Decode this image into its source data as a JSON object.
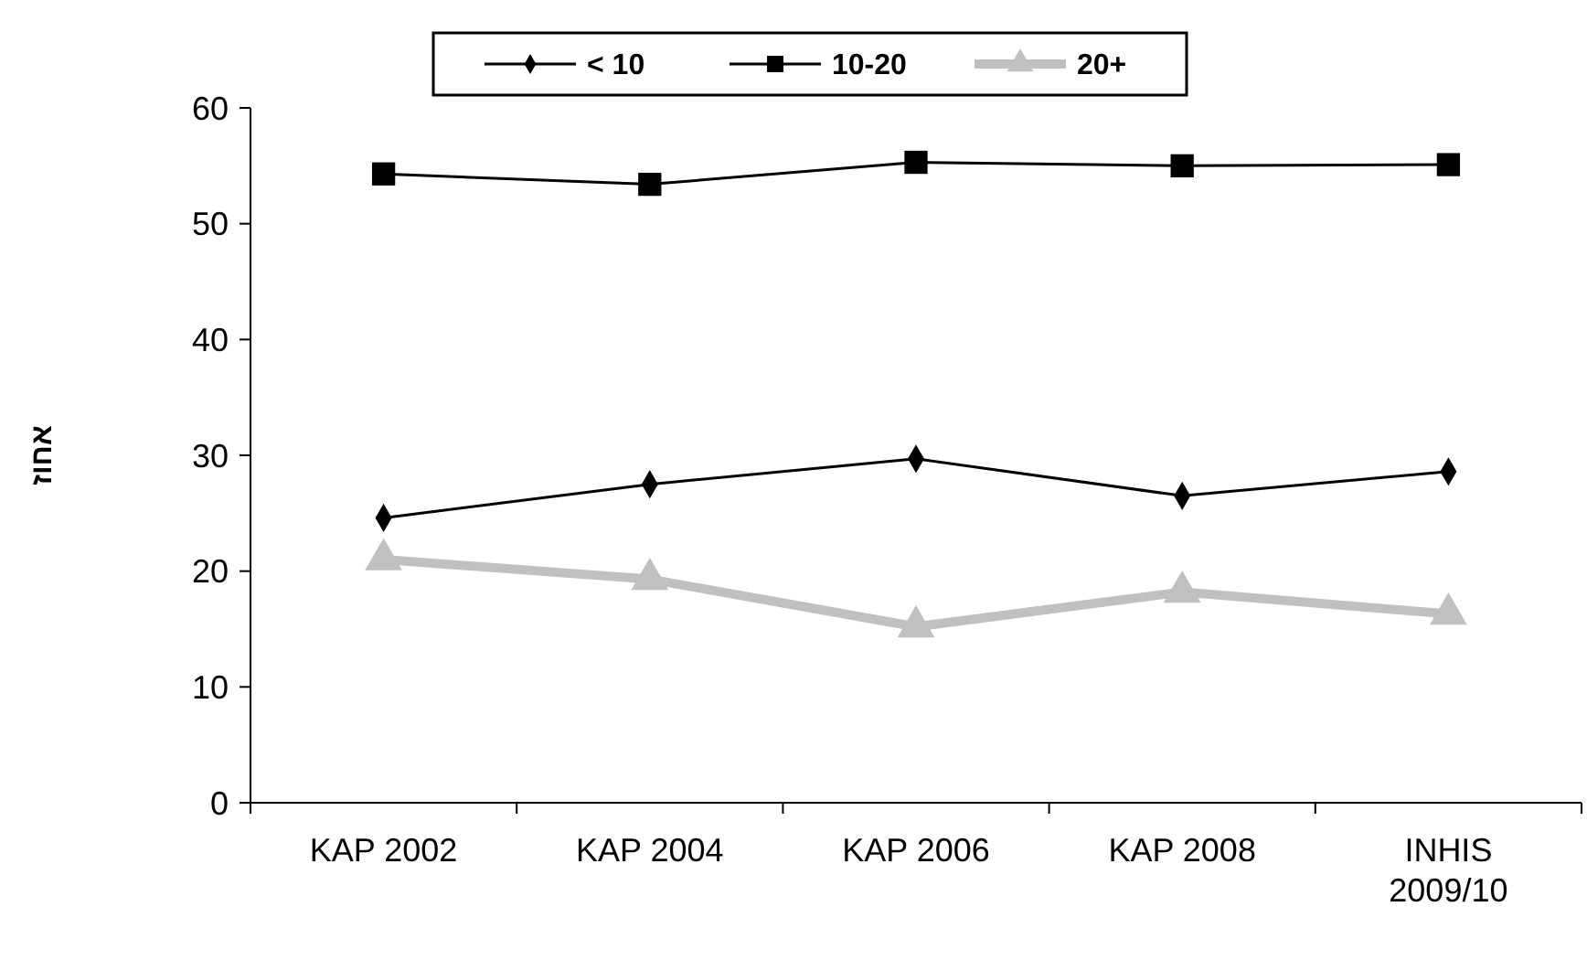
{
  "chart_data": {
    "type": "line",
    "ylabel": "אחוז",
    "categories": [
      "KAP 2002",
      "KAP 2004",
      "KAP 2006",
      "KAP 2008",
      "INHIS 2009/10"
    ],
    "series": [
      {
        "name": "< 10",
        "color": "#000000",
        "marker": "diamond",
        "values": [
          24.6,
          27.5,
          29.7,
          26.5,
          28.6
        ]
      },
      {
        "name": "10-20",
        "color": "#000000",
        "marker": "square",
        "values": [
          54.3,
          53.4,
          55.3,
          55.0,
          55.1
        ]
      },
      {
        "name": "20+",
        "color": "#c0c0c0",
        "marker": "triangle",
        "values": [
          21.0,
          19.3,
          15.2,
          18.2,
          16.3
        ]
      }
    ],
    "ylim": [
      0,
      60
    ],
    "yticks": [
      0,
      10,
      20,
      30,
      40,
      50,
      60
    ],
    "grid": false,
    "legend": "top"
  }
}
